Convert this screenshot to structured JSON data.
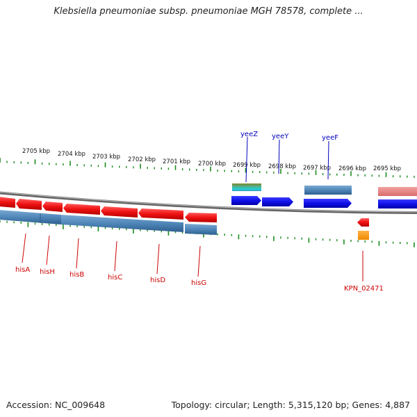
{
  "title": "Klebsiella pneumoniae subsp. pneumoniae MGH 78578, complete ...",
  "footer": {
    "accession": "Accession: NC_009648",
    "summary": "Topology: circular; Length: 5,315,120 bp; Genes: 4,887"
  },
  "colors": {
    "backbone": "#777777",
    "tick": "#1a8a1a",
    "gene_forward": "#1010e8",
    "gene_reverse": "#ee1111",
    "cds_bar": "#4f86b8",
    "top_label": "#0000bb",
    "bottom_label": "#cc0000"
  },
  "kbp_labels": [
    "2705 kbp",
    "2704 kbp",
    "2703 kbp",
    "2702 kbp",
    "2701 kbp",
    "2700 kbp",
    "2699 kbp",
    "2698 kbp",
    "2697 kbp",
    "2696 kbp",
    "2695 kbp"
  ],
  "genes_top": [
    {
      "label": "yeeZ"
    },
    {
      "label": "yeeY"
    },
    {
      "label": "yeeF"
    }
  ],
  "genes_bottom": [
    {
      "label": "hisA"
    },
    {
      "label": "hisH"
    },
    {
      "label": "hisB"
    },
    {
      "label": "hisC"
    },
    {
      "label": "hisD"
    },
    {
      "label": "hisG"
    },
    {
      "label": "KPN_02471"
    }
  ]
}
